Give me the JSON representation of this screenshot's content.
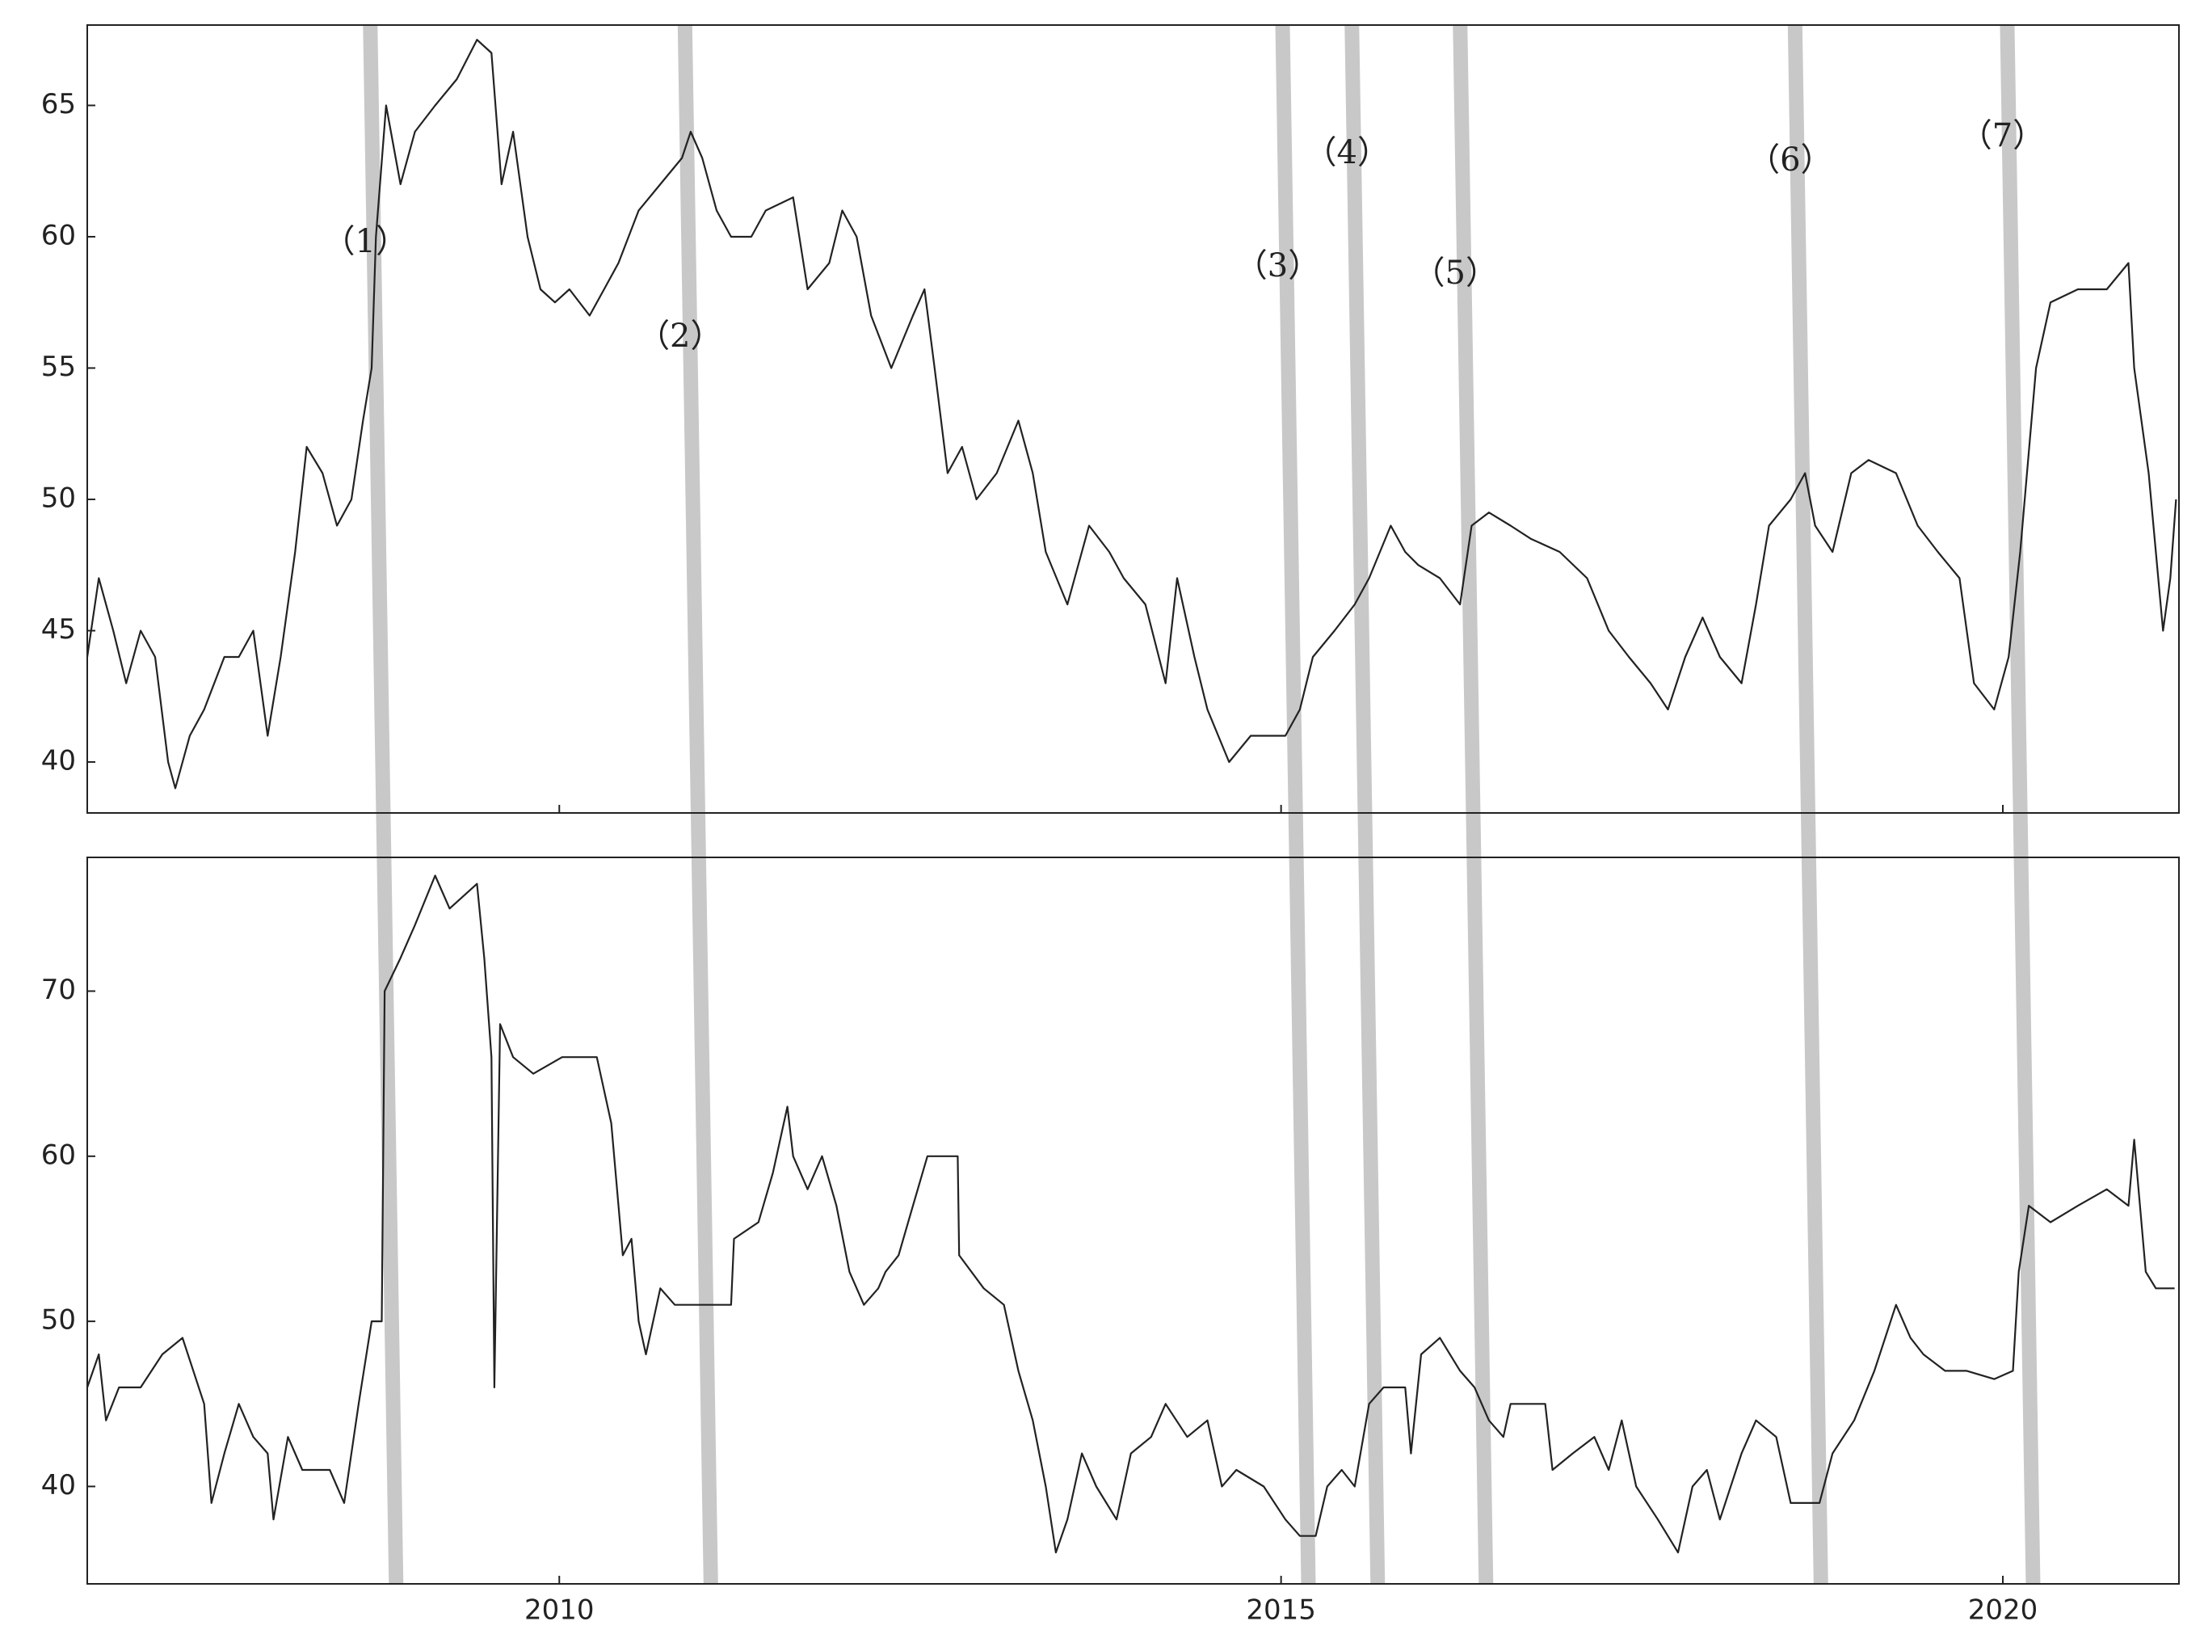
{
  "chart_data": [
    {
      "type": "line",
      "color": "#222222",
      "x": [
        2006.73,
        2006.81,
        2006.91,
        2007.0,
        2007.1,
        2007.2,
        2007.29,
        2007.34,
        2007.44,
        2007.54,
        2007.68,
        2007.78,
        2007.88,
        2007.98,
        2008.07,
        2008.17,
        2008.25,
        2008.36,
        2008.46,
        2008.56,
        2008.64,
        2008.7,
        2008.73,
        2008.8,
        2008.9,
        2009.0,
        2009.14,
        2009.29,
        2009.43,
        2009.53,
        2009.6,
        2009.68,
        2009.78,
        2009.87,
        2009.97,
        2010.07,
        2010.21,
        2010.31,
        2010.41,
        2010.55,
        2010.7,
        2010.85,
        2010.91,
        2010.99,
        2011.09,
        2011.19,
        2011.33,
        2011.43,
        2011.62,
        2011.72,
        2011.87,
        2011.96,
        2012.06,
        2012.16,
        2012.3,
        2012.45,
        2012.53,
        2012.6,
        2012.69,
        2012.79,
        2012.89,
        2013.03,
        2013.18,
        2013.28,
        2013.37,
        2013.52,
        2013.67,
        2013.81,
        2013.91,
        2014.06,
        2014.2,
        2014.28,
        2014.4,
        2014.49,
        2014.64,
        2014.79,
        2014.93,
        2015.03,
        2015.13,
        2015.22,
        2015.37,
        2015.51,
        2015.61,
        2015.76,
        2015.86,
        2015.95,
        2016.1,
        2016.24,
        2016.32,
        2016.44,
        2016.59,
        2016.73,
        2016.93,
        2017.12,
        2017.27,
        2017.41,
        2017.56,
        2017.68,
        2017.8,
        2017.92,
        2018.04,
        2018.19,
        2018.29,
        2018.38,
        2018.53,
        2018.63,
        2018.7,
        2018.82,
        2018.95,
        2019.07,
        2019.26,
        2019.41,
        2019.55,
        2019.7,
        2019.8,
        2019.94,
        2020.04,
        2020.12,
        2020.23,
        2020.33,
        2020.52,
        2020.72,
        2020.87,
        2020.91,
        2021.01,
        2021.11,
        2021.16,
        2021.2
      ],
      "values": [
        44,
        47,
        45,
        43,
        45,
        44,
        40,
        39,
        41,
        42,
        44,
        44,
        45,
        41,
        44,
        48,
        52,
        51,
        49,
        50,
        53,
        55,
        60,
        65,
        62,
        64,
        65,
        66,
        67.5,
        67,
        62,
        64,
        60,
        58,
        57.5,
        58,
        57,
        58,
        59,
        61,
        62,
        63,
        64,
        63,
        61,
        60,
        60,
        61,
        61.5,
        58,
        59,
        61,
        60,
        57,
        55,
        57,
        58,
        55,
        51,
        52,
        50,
        51,
        53,
        51,
        48,
        46,
        49,
        48,
        47,
        46,
        43,
        47,
        44,
        42,
        40,
        41,
        41,
        41,
        42,
        44,
        45,
        46,
        47,
        49,
        48,
        47.5,
        47,
        46,
        49,
        49.5,
        49,
        48.5,
        48,
        47,
        45,
        44,
        43,
        42,
        44,
        45.5,
        44,
        43,
        46,
        49,
        50,
        51,
        49,
        48,
        51,
        51.5,
        51,
        49,
        48,
        47,
        43,
        42,
        44,
        48,
        55,
        57.5,
        58,
        58,
        59,
        55,
        51,
        45,
        47,
        50
      ],
      "xlim": [
        2006.73,
        2021.22
      ],
      "xticks": [
        2010,
        2015,
        2020
      ],
      "ylim": [
        38.06,
        68.06
      ],
      "yticks": [
        40,
        45,
        50,
        55,
        60,
        65
      ],
      "events": [
        {
          "label": "（1）",
          "x": 2008.78
        },
        {
          "label": "（2）",
          "x": 2010.96
        },
        {
          "label": "（3）",
          "x": 2015.1
        },
        {
          "label": "（4）",
          "x": 2015.58
        },
        {
          "label": "（5）",
          "x": 2016.33
        },
        {
          "label": "（6）",
          "x": 2018.65
        },
        {
          "label": "（7）",
          "x": 2020.12
        }
      ]
    },
    {
      "type": "line",
      "color": "#222222",
      "x": [
        2006.73,
        2006.81,
        2006.86,
        2006.95,
        2007.1,
        2007.25,
        2007.39,
        2007.54,
        2007.59,
        2007.68,
        2007.78,
        2007.88,
        2007.98,
        2008.02,
        2008.12,
        2008.22,
        2008.41,
        2008.51,
        2008.61,
        2008.7,
        2008.77,
        2008.79,
        2008.9,
        2009.0,
        2009.14,
        2009.24,
        2009.43,
        2009.48,
        2009.53,
        2009.55,
        2009.59,
        2009.68,
        2009.82,
        2010.02,
        2010.26,
        2010.36,
        2010.44,
        2010.5,
        2010.55,
        2010.6,
        2010.7,
        2010.8,
        2011.19,
        2011.21,
        2011.38,
        2011.48,
        2011.58,
        2011.62,
        2011.72,
        2011.82,
        2011.92,
        2012.01,
        2012.11,
        2012.21,
        2012.26,
        2012.35,
        2012.45,
        2012.55,
        2012.76,
        2012.77,
        2012.94,
        2013.08,
        2013.18,
        2013.28,
        2013.37,
        2013.44,
        2013.52,
        2013.62,
        2013.72,
        2013.86,
        2013.96,
        2014.1,
        2014.2,
        2014.35,
        2014.49,
        2014.59,
        2014.69,
        2014.88,
        2015.03,
        2015.13,
        2015.24,
        2015.32,
        2015.42,
        2015.51,
        2015.61,
        2015.71,
        2015.86,
        2015.9,
        2015.97,
        2016.1,
        2016.24,
        2016.34,
        2016.44,
        2016.54,
        2016.59,
        2016.83,
        2016.88,
        2017.02,
        2017.17,
        2017.27,
        2017.36,
        2017.46,
        2017.61,
        2017.75,
        2017.85,
        2017.95,
        2018.04,
        2018.19,
        2018.29,
        2018.43,
        2018.53,
        2018.73,
        2018.82,
        2018.97,
        2019.11,
        2019.26,
        2019.36,
        2019.45,
        2019.6,
        2019.75,
        2019.94,
        2020.07,
        2020.11,
        2020.18,
        2020.33,
        2020.52,
        2020.72,
        2020.87,
        2020.91,
        2020.99,
        2021.06,
        2021.19
      ],
      "values": [
        46,
        48,
        44,
        46,
        46,
        48,
        49,
        45,
        39,
        42,
        45,
        43,
        42,
        38,
        43,
        41,
        41,
        39,
        45,
        50,
        50,
        70,
        72,
        74,
        77,
        75,
        76.5,
        72,
        66,
        46,
        68,
        66,
        65,
        66,
        66,
        62,
        54,
        55,
        50,
        48,
        52,
        51,
        51,
        55,
        56,
        59,
        63,
        60,
        58,
        60,
        57,
        53,
        51,
        52,
        53,
        54,
        57,
        60,
        60,
        54,
        52,
        51,
        47,
        44,
        40,
        36,
        38,
        42,
        40,
        38,
        42,
        43,
        45,
        43,
        44,
        40,
        41,
        40,
        38,
        37,
        37,
        40,
        41,
        40,
        45,
        46,
        46,
        42,
        48,
        49,
        47,
        46,
        44,
        43,
        45,
        45,
        41,
        42,
        43,
        41,
        44,
        40,
        38,
        36,
        40,
        41,
        38,
        42,
        44,
        43,
        39,
        39,
        42,
        44,
        47,
        51,
        49,
        48,
        47,
        47,
        46.5,
        47,
        53,
        57,
        56,
        57,
        58,
        57,
        61,
        53,
        52,
        52
      ],
      "xlim": [
        2006.73,
        2021.22
      ],
      "xticks": [
        2010,
        2015,
        2020
      ],
      "ylim": [
        34.1,
        78.1
      ],
      "yticks": [
        40,
        50,
        60,
        70
      ]
    }
  ]
}
